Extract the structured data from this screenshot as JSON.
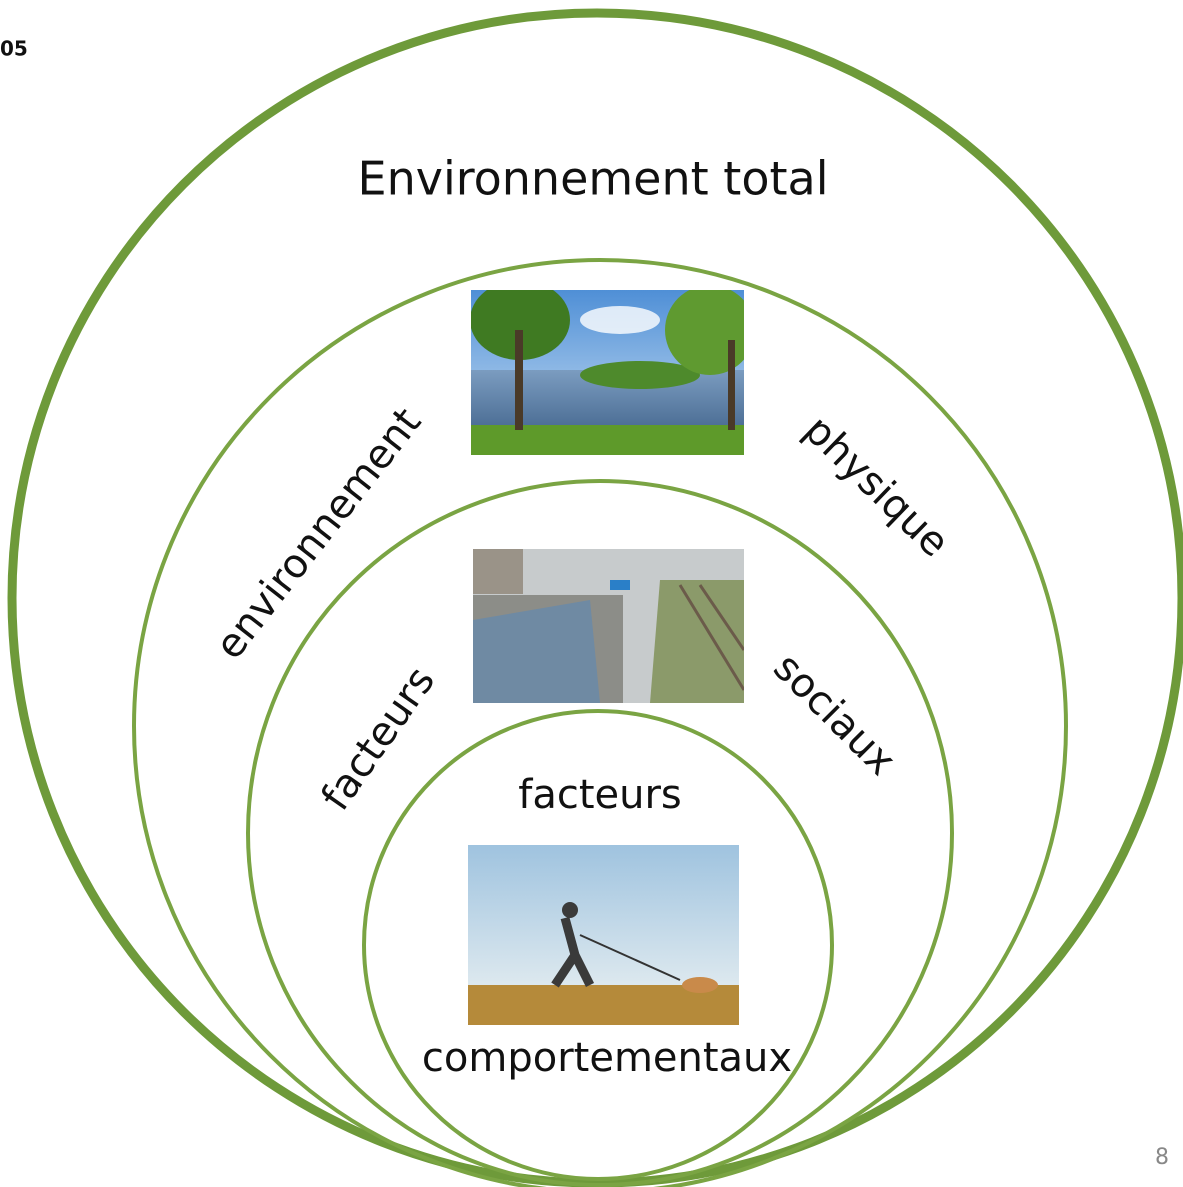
{
  "corner_label": "05",
  "title": "Environnement total",
  "rings": [
    {
      "left_label": "environnement",
      "right_label": "physique"
    },
    {
      "left_label": "facteurs",
      "right_label": "sociaux"
    },
    {
      "top_label": "facteurs",
      "bottom_label": "comportementaux"
    }
  ],
  "page_number": "8"
}
